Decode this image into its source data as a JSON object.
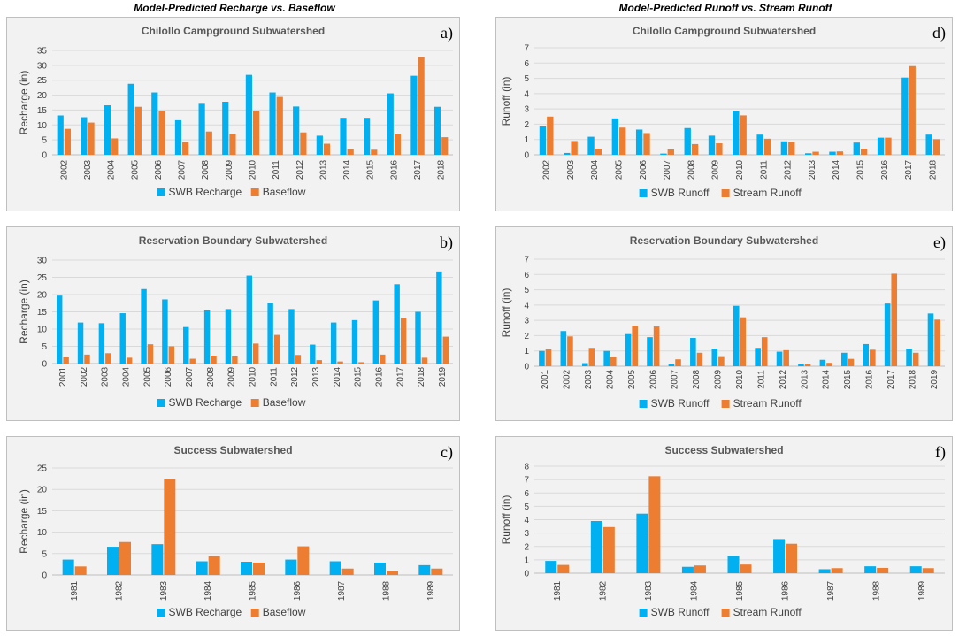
{
  "column_titles": {
    "left": "Model-Predicted Recharge vs. Baseflow",
    "right": "Model-Predicted Runoff vs. Stream Runoff"
  },
  "colors": {
    "series1": "#00B0F0",
    "series2": "#ED7D31",
    "panel_bg": "#F2F2F2",
    "grid": "#D9D9D9",
    "border": "#BFBFBF"
  },
  "chart_data": [
    {
      "id": "a",
      "type": "bar",
      "panel_label": "a)",
      "title": "Chilollo Campground Subwatershed",
      "ylabel": "Recharge (in)",
      "xlabel": "",
      "ylim": [
        0,
        35
      ],
      "yticks": [
        0,
        5,
        10,
        15,
        20,
        25,
        30,
        35
      ],
      "categories": [
        "2002",
        "2003",
        "2004",
        "2005",
        "2006",
        "2007",
        "2008",
        "2009",
        "2010",
        "2011",
        "2012",
        "2013",
        "2014",
        "2015",
        "2016",
        "2017",
        "2018"
      ],
      "series": [
        {
          "name": "SWB Recharge",
          "values": [
            13.2,
            12.6,
            16.6,
            23.8,
            20.9,
            11.6,
            17.1,
            17.8,
            26.8,
            20.9,
            16.2,
            6.4,
            12.4,
            12.4,
            20.6,
            26.5,
            16.1
          ]
        },
        {
          "name": "Baseflow",
          "values": [
            8.7,
            10.8,
            5.5,
            16.1,
            14.6,
            4.3,
            7.8,
            6.9,
            14.8,
            19.4,
            7.5,
            3.7,
            1.9,
            1.7,
            7.0,
            32.8,
            5.9
          ]
        }
      ],
      "legend": "bottom"
    },
    {
      "id": "b",
      "type": "bar",
      "panel_label": "b)",
      "title": "Reservation Boundary Subwatershed",
      "ylabel": "Recharge (in)",
      "xlabel": "",
      "ylim": [
        0,
        30
      ],
      "yticks": [
        0,
        5,
        10,
        15,
        20,
        25,
        30
      ],
      "categories": [
        "2001",
        "2002",
        "2003",
        "2004",
        "2005",
        "2006",
        "2007",
        "2008",
        "2009",
        "2010",
        "2011",
        "2012",
        "2013",
        "2014",
        "2015",
        "2016",
        "2017",
        "2018",
        "2019"
      ],
      "series": [
        {
          "name": "SWB Recharge",
          "values": [
            19.7,
            11.9,
            11.7,
            14.6,
            21.6,
            18.6,
            10.6,
            15.4,
            15.8,
            25.5,
            17.6,
            15.8,
            5.5,
            11.9,
            12.6,
            18.3,
            23.0,
            15.0,
            26.7
          ]
        },
        {
          "name": "Baseflow",
          "values": [
            1.8,
            2.6,
            3.0,
            1.7,
            5.6,
            5.0,
            1.4,
            2.3,
            2.1,
            5.8,
            8.3,
            2.5,
            1.0,
            0.6,
            0.4,
            2.6,
            13.2,
            1.7,
            7.8
          ]
        }
      ],
      "legend": "bottom"
    },
    {
      "id": "c",
      "type": "bar",
      "panel_label": "c)",
      "title": "Success Subwatershed",
      "ylabel": "Recharge (in)",
      "xlabel": "",
      "ylim": [
        0,
        25
      ],
      "yticks": [
        0,
        5,
        10,
        15,
        20,
        25
      ],
      "categories": [
        "1981",
        "1982",
        "1983",
        "1984",
        "1985",
        "1986",
        "1987",
        "1988",
        "1989"
      ],
      "series": [
        {
          "name": "SWB Recharge",
          "values": [
            3.6,
            6.6,
            7.2,
            3.2,
            3.1,
            3.6,
            3.2,
            2.9,
            2.3
          ]
        },
        {
          "name": "Baseflow",
          "values": [
            2.0,
            7.7,
            22.4,
            4.4,
            2.9,
            6.7,
            1.5,
            1.0,
            1.5
          ]
        }
      ],
      "legend": "bottom"
    },
    {
      "id": "d",
      "type": "bar",
      "panel_label": "d)",
      "title": "Chilollo Campground Subwatershed",
      "ylabel": "Runoff (in)",
      "xlabel": "",
      "ylim": [
        0,
        7
      ],
      "yticks": [
        0,
        1,
        2,
        3,
        4,
        5,
        6,
        7
      ],
      "categories": [
        "2002",
        "2003",
        "2004",
        "2005",
        "2006",
        "2007",
        "2008",
        "2009",
        "2010",
        "2011",
        "2012",
        "2013",
        "2014",
        "2015",
        "2016",
        "2017",
        "2018"
      ],
      "series": [
        {
          "name": "SWB Runoff",
          "values": [
            1.85,
            0.12,
            1.18,
            2.38,
            1.65,
            0.08,
            1.75,
            1.25,
            2.85,
            1.32,
            0.88,
            0.1,
            0.2,
            0.8,
            1.12,
            5.05,
            1.32
          ]
        },
        {
          "name": "Stream Runoff",
          "values": [
            2.5,
            0.9,
            0.4,
            1.78,
            1.42,
            0.35,
            0.7,
            0.75,
            2.58,
            1.05,
            0.85,
            0.2,
            0.22,
            0.4,
            1.12,
            5.8,
            1.02
          ]
        }
      ],
      "legend": "bottom"
    },
    {
      "id": "e",
      "type": "bar",
      "panel_label": "e)",
      "title": "Reservation Boundary Subwatershed",
      "ylabel": "Runoff (in)",
      "xlabel": "",
      "ylim": [
        0,
        7
      ],
      "yticks": [
        0,
        1,
        2,
        3,
        4,
        5,
        6,
        7
      ],
      "categories": [
        "2001",
        "2002",
        "2003",
        "2004",
        "2005",
        "2006",
        "2007",
        "2008",
        "2009",
        "2010",
        "2011",
        "2012",
        "2013",
        "2014",
        "2015",
        "2016",
        "2017",
        "2018",
        "2019"
      ],
      "series": [
        {
          "name": "SWB Runoff",
          "values": [
            1.0,
            2.3,
            0.2,
            1.0,
            2.1,
            1.9,
            0.12,
            1.85,
            1.15,
            3.95,
            1.2,
            0.95,
            0.12,
            0.42,
            0.88,
            1.45,
            4.1,
            1.15,
            3.45
          ]
        },
        {
          "name": "Stream Runoff",
          "values": [
            1.1,
            1.95,
            1.2,
            0.58,
            2.65,
            2.6,
            0.45,
            0.88,
            0.6,
            3.2,
            1.9,
            1.05,
            0.15,
            0.22,
            0.48,
            1.08,
            6.05,
            0.88,
            3.05
          ]
        }
      ],
      "legend": "bottom"
    },
    {
      "id": "f",
      "type": "bar",
      "panel_label": "f)",
      "title": "Success Subwatershed",
      "ylabel": "Runoff (in)",
      "xlabel": "",
      "ylim": [
        0,
        8
      ],
      "yticks": [
        0,
        1,
        2,
        3,
        4,
        5,
        6,
        7,
        8
      ],
      "categories": [
        "1981",
        "1982",
        "1983",
        "1984",
        "1985",
        "1986",
        "1987",
        "1988",
        "1989"
      ],
      "series": [
        {
          "name": "SWB Runoff",
          "values": [
            0.92,
            3.9,
            4.45,
            0.48,
            1.3,
            2.55,
            0.3,
            0.52,
            0.52
          ]
        },
        {
          "name": "Stream Runoff",
          "values": [
            0.62,
            3.45,
            7.25,
            0.58,
            0.65,
            2.2,
            0.38,
            0.4,
            0.38
          ]
        }
      ],
      "legend": "bottom"
    }
  ]
}
